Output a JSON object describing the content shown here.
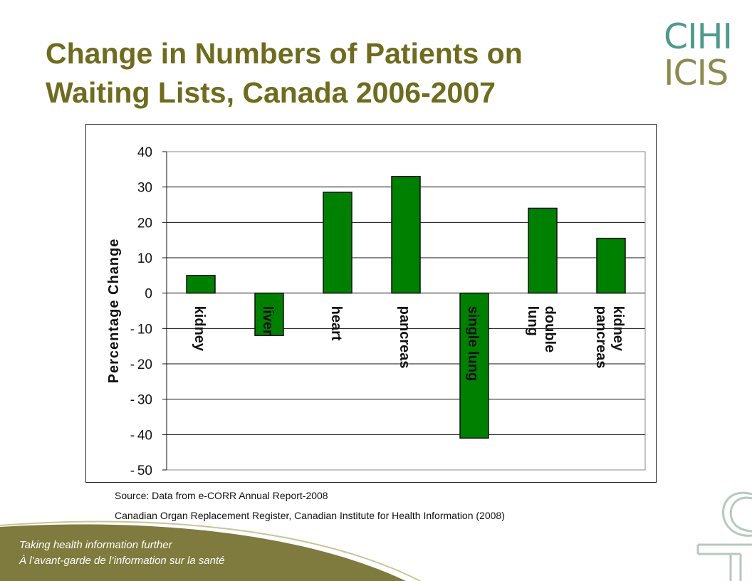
{
  "slide": {
    "title_line1": "Change in Numbers of Patients on",
    "title_line2": "Waiting Lists, Canada 2006-2007",
    "logo_line1": "CIHI",
    "logo_line2": "ICIS",
    "source_line1": "Source: Data from e-CORR Annual Report-2008",
    "source_line2": "Canadian Organ Replacement Register, Canadian Institute for Health Information (2008)",
    "tagline_line1": "Taking health information further",
    "tagline_line2": "À l’avant-garde de l’information sur la santé"
  },
  "colors": {
    "title": "#6f6b1f",
    "bar": "#008000",
    "band": "#7f7a3d"
  },
  "chart_data": {
    "type": "bar",
    "title": "",
    "xlabel": "",
    "ylabel": "Percentage Change",
    "categories": [
      [
        "kidney"
      ],
      [
        "liver"
      ],
      [
        "heart"
      ],
      [
        "pancreas"
      ],
      [
        "single lung"
      ],
      [
        "double",
        "lung"
      ],
      [
        "kidney",
        "pancreas"
      ]
    ],
    "values": [
      5,
      -12,
      28.5,
      33,
      -41,
      24,
      15.5
    ],
    "ylim": [
      -50,
      40
    ],
    "yticks": [
      40,
      30,
      20,
      10,
      0,
      -10,
      -20,
      -30,
      -40,
      -50
    ],
    "grid": true,
    "legend": "none"
  }
}
